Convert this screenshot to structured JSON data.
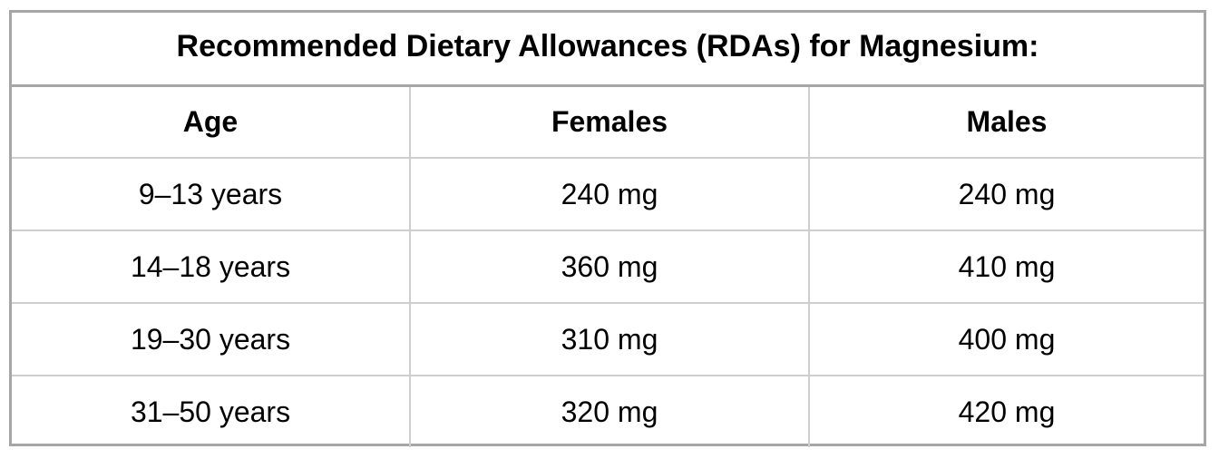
{
  "table": {
    "title": "Recommended Dietary Allowances (RDAs) for Magnesium:",
    "headers": [
      "Age",
      "Females",
      "Males"
    ],
    "rows": [
      [
        "9–13 years",
        "240 mg",
        "240 mg"
      ],
      [
        "14–18 years",
        "360 mg",
        "410 mg"
      ],
      [
        "19–30 years",
        "310 mg",
        "400 mg"
      ],
      [
        "31–50 years",
        "320 mg",
        "420 mg"
      ]
    ]
  }
}
